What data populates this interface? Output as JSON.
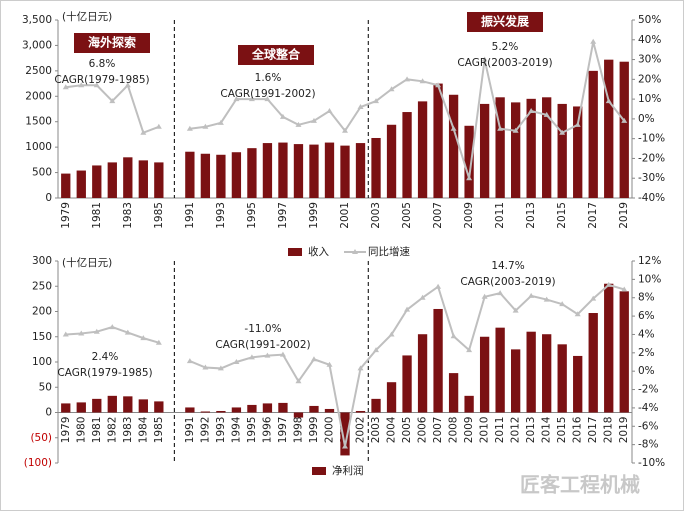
{
  "chart_data": [
    {
      "type": "bar_line",
      "unit": "(十亿日元)",
      "categories": [
        "1979",
        null,
        "1981",
        null,
        "1983",
        null,
        "1985",
        null,
        "1991",
        null,
        "1993",
        null,
        "1995",
        null,
        "1997",
        null,
        "1999",
        null,
        "2001",
        null,
        "2003",
        null,
        "2005",
        null,
        "2007",
        null,
        "2009",
        null,
        "2011",
        null,
        "2013",
        null,
        "2015",
        null,
        "2017",
        null,
        "2019"
      ],
      "series": [
        {
          "name": "收入",
          "color": "#7b1113",
          "kind": "bar",
          "values": [
            480,
            540,
            640,
            700,
            800,
            740,
            700,
            null,
            910,
            870,
            850,
            900,
            980,
            1080,
            1090,
            1060,
            1050,
            1090,
            1030,
            1080,
            1180,
            1440,
            1690,
            1900,
            2250,
            2030,
            1420,
            1850,
            1980,
            1880,
            1950,
            1980,
            1850,
            1800,
            2500,
            2720,
            2680
          ]
        },
        {
          "name": "同比增速",
          "color": "#bfbfbf",
          "kind": "line",
          "axis": "y2",
          "values": [
            16,
            17,
            17,
            9,
            17,
            -7,
            -4,
            null,
            -5,
            -4,
            -2,
            10,
            10,
            10,
            1,
            -3,
            -1,
            4,
            -6,
            6,
            9,
            15,
            20,
            19,
            17,
            -5,
            -30,
            30,
            -5,
            -6,
            4,
            2,
            -7,
            -3,
            39,
            9,
            -1
          ]
        }
      ],
      "ylim": [
        0,
        3500
      ],
      "yticks": [
        0,
        500,
        1000,
        1500,
        2000,
        2500,
        {
          "value": 3000,
          "label": "3,000"
        },
        {
          "value": 3500,
          "label": "3,500"
        }
      ],
      "y2lim": [
        -40,
        50
      ],
      "y2ticks": [
        {
          "value": -40,
          "label": "-40%"
        },
        {
          "value": -30,
          "label": "-30%"
        },
        {
          "value": -20,
          "label": "-20%"
        },
        {
          "value": -10,
          "label": "-10%"
        },
        {
          "value": 0,
          "label": "0%"
        },
        {
          "value": 10,
          "label": "10%"
        },
        {
          "value": 20,
          "label": "20%"
        },
        {
          "value": 30,
          "label": "30%"
        },
        {
          "value": 40,
          "label": "40%"
        },
        {
          "value": 50,
          "label": "50%"
        }
      ],
      "phases": [
        "海外探索",
        "全球整合",
        "振兴发展"
      ],
      "cagr": [
        {
          "rate": "6.8%",
          "period": "CAGR(1979-1985)"
        },
        {
          "rate": "1.6%",
          "period": "CAGR(1991-2002)"
        },
        {
          "rate": "5.2%",
          "period": "CAGR(2003-2019)"
        }
      ]
    },
    {
      "type": "bar_line",
      "unit": "(十亿日元)",
      "categories": [
        "1979",
        "1980",
        "1981",
        "1982",
        "1983",
        "1984",
        "1985",
        null,
        "1991",
        "1992",
        "1993",
        "1994",
        "1995",
        "1996",
        "1997",
        "1998",
        "1999",
        "2000",
        "2001",
        "2002",
        "2003",
        "2004",
        "2005",
        "2006",
        "2007",
        "2008",
        "2009",
        "2010",
        "2011",
        "2012",
        "2013",
        "2014",
        "2015",
        "2016",
        "2017",
        "2018",
        "2019"
      ],
      "series": [
        {
          "name": "净利润",
          "color": "#7b1113",
          "kind": "bar",
          "values": [
            18,
            20,
            27,
            33,
            32,
            26,
            22,
            null,
            10,
            2,
            3,
            10,
            15,
            18,
            19,
            -10,
            13,
            7,
            -85,
            3,
            27,
            60,
            113,
            155,
            205,
            78,
            33,
            150,
            168,
            125,
            160,
            155,
            135,
            112,
            197,
            255,
            240
          ]
        },
        {
          "color": "#bfbfbf",
          "kind": "line",
          "axis": "y2",
          "values": [
            4,
            4.1,
            4.3,
            4.8,
            4.2,
            3.6,
            3.1,
            null,
            1.1,
            0.4,
            0.3,
            1,
            1.5,
            1.7,
            1.8,
            -1.1,
            1.3,
            0.7,
            -8.2,
            0.3,
            2.3,
            4,
            6.7,
            8,
            9.2,
            3.8,
            2.3,
            8.1,
            8.5,
            6.6,
            8.2,
            7.8,
            7.3,
            6.2,
            7.9,
            9.4,
            8.9
          ]
        }
      ],
      "ylim": [
        -100,
        300
      ],
      "yticks": [
        {
          "value": -100,
          "label": "(100)"
        },
        {
          "value": -50,
          "label": "(50)"
        },
        0,
        50,
        100,
        150,
        200,
        250,
        300
      ],
      "y2lim": [
        -10,
        12
      ],
      "y2ticks": [
        {
          "value": -10,
          "label": "-10%"
        },
        {
          "value": -8,
          "label": "-8%"
        },
        {
          "value": -6,
          "label": "-6%"
        },
        {
          "value": -4,
          "label": "-4%"
        },
        {
          "value": -2,
          "label": "-2%"
        },
        {
          "value": 0,
          "label": "0%"
        },
        {
          "value": 2,
          "label": "2%"
        },
        {
          "value": 4,
          "label": "4%"
        },
        {
          "value": 6,
          "label": "6%"
        },
        {
          "value": 8,
          "label": "8%"
        },
        {
          "value": 10,
          "label": "10%"
        },
        {
          "value": 12,
          "label": "12%"
        }
      ],
      "cagr": [
        {
          "rate": "2.4%",
          "period": "CAGR(1979-1985)"
        },
        {
          "rate": "-11.0%",
          "period": "CAGR(1991-2002)"
        },
        {
          "rate": "14.7%",
          "period": "CAGR(2003-2019)"
        }
      ]
    }
  ],
  "watermark": "匠客工程机械"
}
